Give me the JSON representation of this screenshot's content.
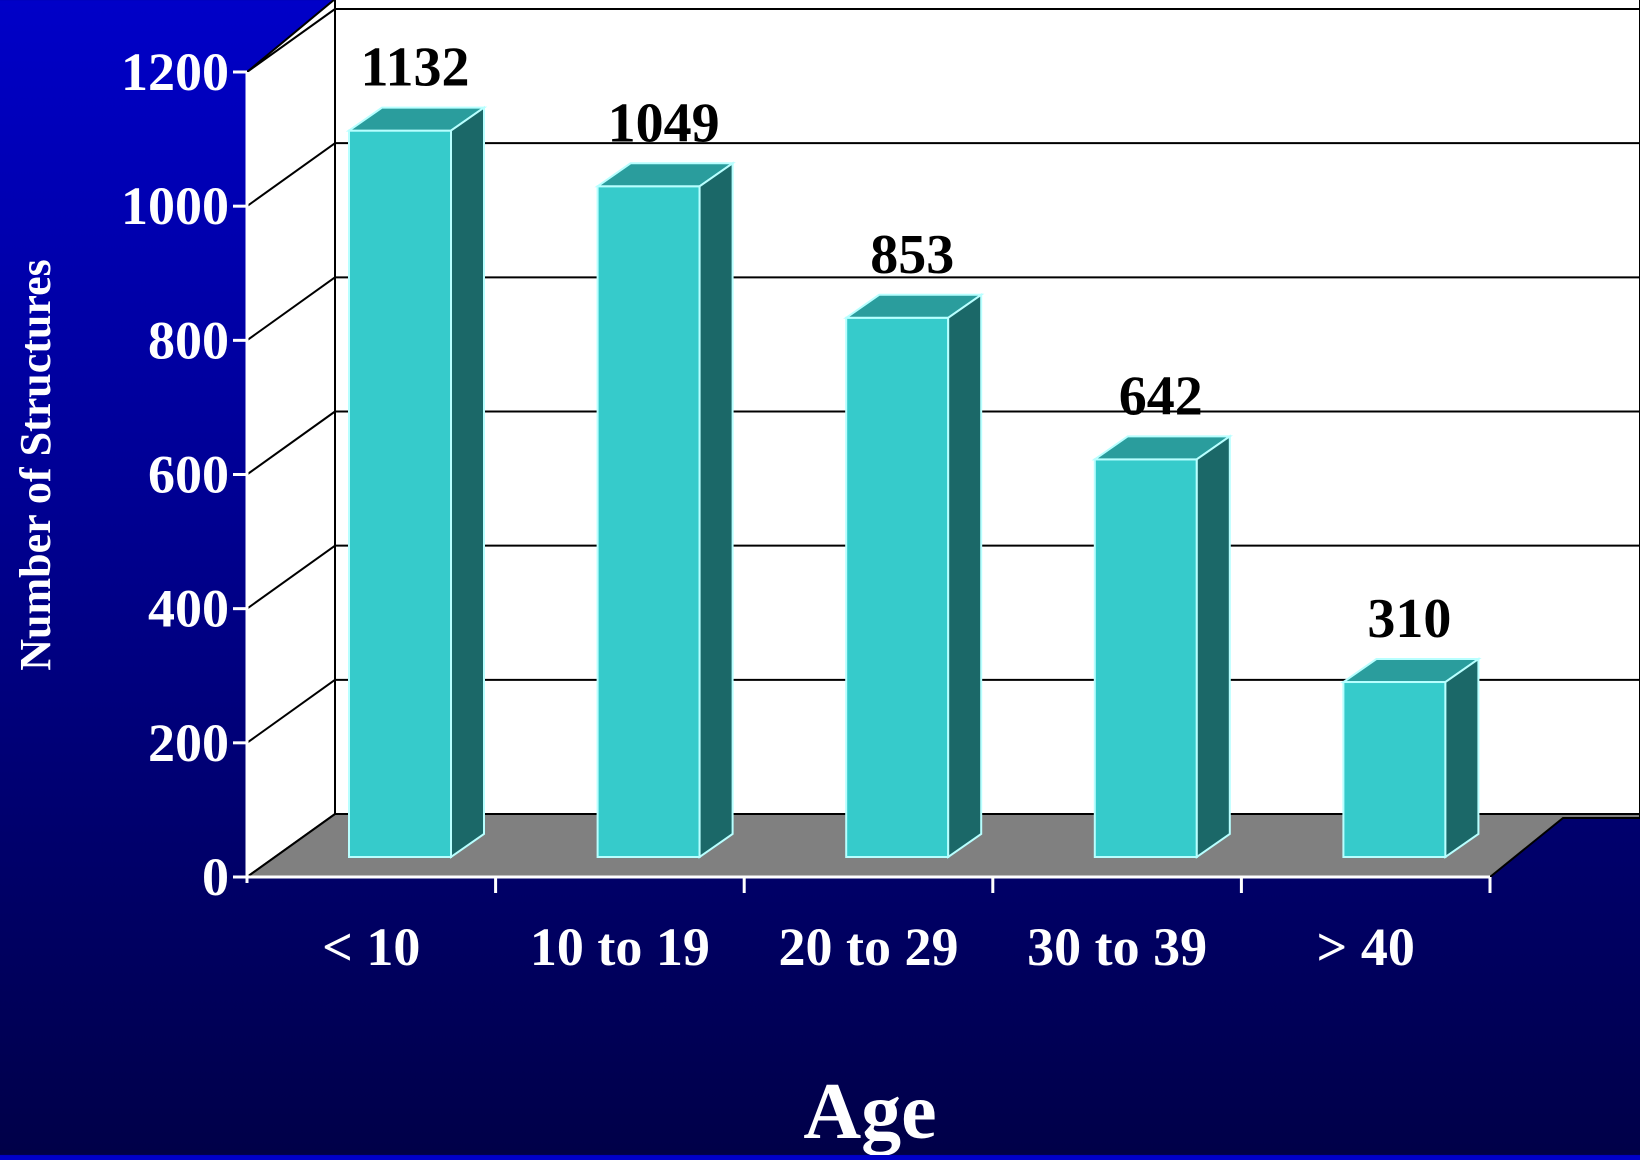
{
  "chart_data": {
    "type": "bar",
    "title": "",
    "xlabel": "Age",
    "ylabel": "Number of Structures",
    "categories": [
      "< 10",
      "10 to 19",
      "20 to 29",
      "30 to 39",
      "> 40"
    ],
    "values": [
      1132,
      1049,
      853,
      642,
      310
    ],
    "data_labels": [
      "1132",
      "1049",
      "853",
      "642",
      "310"
    ],
    "yticks": [
      0,
      200,
      400,
      600,
      800,
      1000,
      1200
    ],
    "ylim": [
      0,
      1200
    ],
    "grid": true,
    "three_d": true,
    "colors": {
      "bar_front": "#36cbcb",
      "bar_top": "#2a9d9d",
      "bar_side": "#1b6868",
      "bar_edge": "#b8ffff",
      "floor": "#808080",
      "wall": "#ffffff",
      "axis_text": "#ffffff",
      "value_text": "#000000"
    }
  }
}
